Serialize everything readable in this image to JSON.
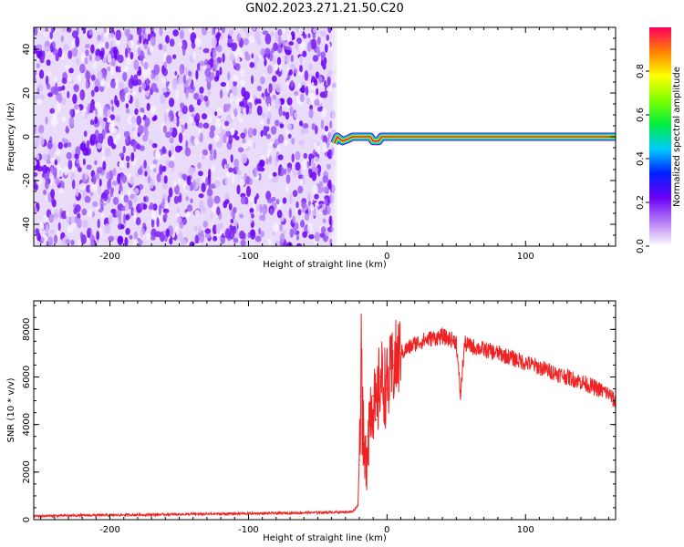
{
  "title": "GN02.2023.271.21.50.C20",
  "chart_data": [
    {
      "type": "heatmap",
      "xlabel": "Height of straight line (km)",
      "ylabel": "Frequency (Hz)",
      "xlim": [
        -255,
        165
      ],
      "ylim": [
        -50,
        50
      ],
      "xticks": [
        -200,
        -100,
        0,
        100
      ],
      "yticks": [
        -40,
        -20,
        0,
        20,
        40
      ],
      "noise_region_x": [
        -255,
        -38
      ],
      "signal": {
        "x_start": -38,
        "x_end": 165,
        "frequency": 0,
        "points": [
          [
            -38,
            -3
          ],
          [
            -36,
            0
          ],
          [
            -32,
            -2
          ],
          [
            -28,
            -1
          ],
          [
            -25,
            0
          ],
          [
            -15,
            0
          ],
          [
            -12,
            0
          ],
          [
            -10,
            -2
          ],
          [
            -6,
            -2
          ],
          [
            -4,
            0
          ],
          [
            5,
            0
          ],
          [
            165,
            0
          ]
        ]
      },
      "colorbar": {
        "label": "Normalized spectral amplitude",
        "range": [
          0,
          1
        ],
        "ticks": [
          "0.0",
          "0.2",
          "0.4",
          "0.6",
          "0.8"
        ],
        "tick_values": [
          0.0,
          0.2,
          0.4,
          0.6,
          0.8
        ],
        "colors": [
          "#ffffff",
          "#b57ef7",
          "#6a00f4",
          "#0020ff",
          "#00ccff",
          "#00ee40",
          "#7fff00",
          "#ffff00",
          "#ff8000",
          "#ff0060"
        ]
      }
    },
    {
      "type": "line",
      "xlabel": "Height of straight line (km)",
      "ylabel": "SNR (10 * v/v)",
      "xlim": [
        -255,
        165
      ],
      "ylim": [
        0,
        9200
      ],
      "xticks": [
        -200,
        -100,
        0,
        100
      ],
      "yticks": [
        0,
        2000,
        4000,
        6000,
        8000
      ],
      "color": "#ee2222",
      "series": [
        {
          "x": [
            -255,
            -230,
            -200,
            -170,
            -140,
            -110,
            -80,
            -60,
            -40,
            -25,
            -21,
            -20,
            -19,
            -18.5,
            -18,
            -16,
            -14,
            -12,
            -10,
            -8,
            -5,
            0,
            5,
            10,
            20,
            30,
            40,
            50,
            53,
            56,
            60,
            80,
            100,
            120,
            140,
            160,
            165
          ],
          "y": [
            150,
            170,
            190,
            210,
            230,
            250,
            270,
            290,
            310,
            330,
            600,
            2500,
            5200,
            9200,
            4500,
            2000,
            3500,
            4800,
            5200,
            4200,
            6000,
            5500,
            6500,
            7000,
            7400,
            7600,
            7700,
            7500,
            5200,
            7400,
            7300,
            7000,
            6600,
            6200,
            5800,
            5300,
            4900
          ]
        }
      ]
    }
  ]
}
